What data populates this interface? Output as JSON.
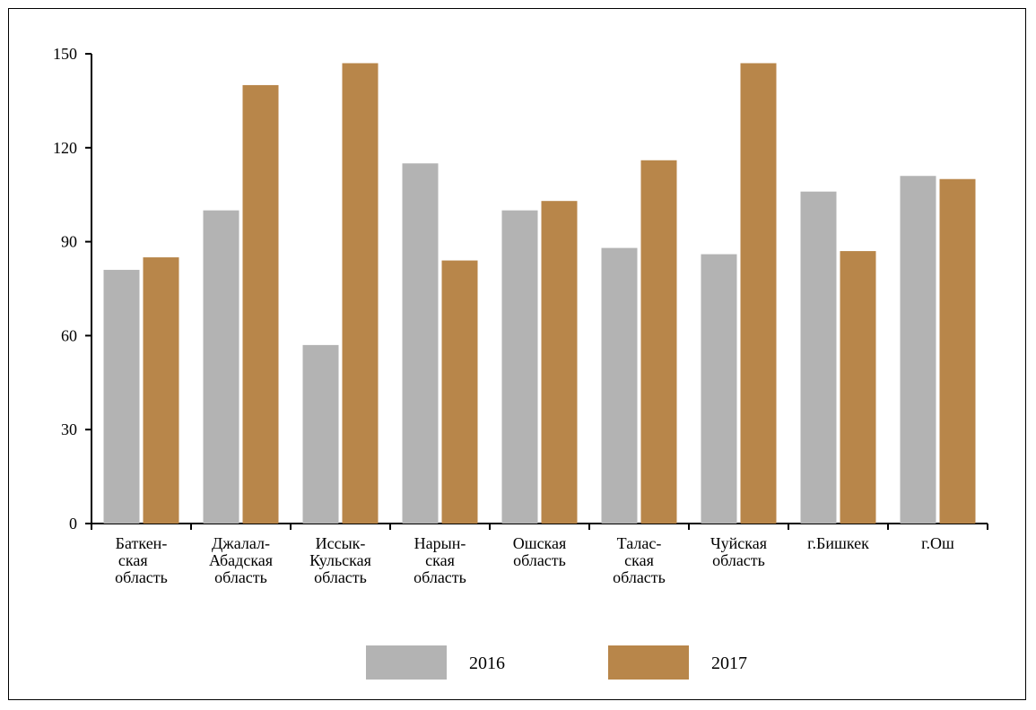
{
  "chart_data": {
    "type": "bar",
    "categories": [
      [
        "Баткен-",
        "ская ",
        "область"
      ],
      [
        "Джалал-",
        "Абадская",
        "область"
      ],
      [
        "Иссык-",
        "Кульская",
        "область"
      ],
      [
        "Нарын-",
        "ская",
        "область"
      ],
      [
        "Ошская",
        "область"
      ],
      [
        "Талас-",
        "ская",
        "область"
      ],
      [
        "Чуйская",
        "область"
      ],
      [
        "г.Бишкек"
      ],
      [
        "г.Ош"
      ]
    ],
    "series": [
      {
        "name": "2016",
        "color": "#b3b3b3",
        "values": [
          81,
          100,
          57,
          115,
          100,
          88,
          86,
          106,
          111
        ]
      },
      {
        "name": "2017",
        "color": "#b8864a",
        "values": [
          85,
          140,
          147,
          84,
          103,
          116,
          147,
          87,
          110
        ]
      }
    ],
    "yticks": [
      0,
      30,
      60,
      90,
      120,
      150
    ],
    "ylim": [
      0,
      150
    ],
    "title": "",
    "xlabel": "",
    "ylabel": "",
    "grid": false,
    "legend_position": "bottom-center"
  }
}
